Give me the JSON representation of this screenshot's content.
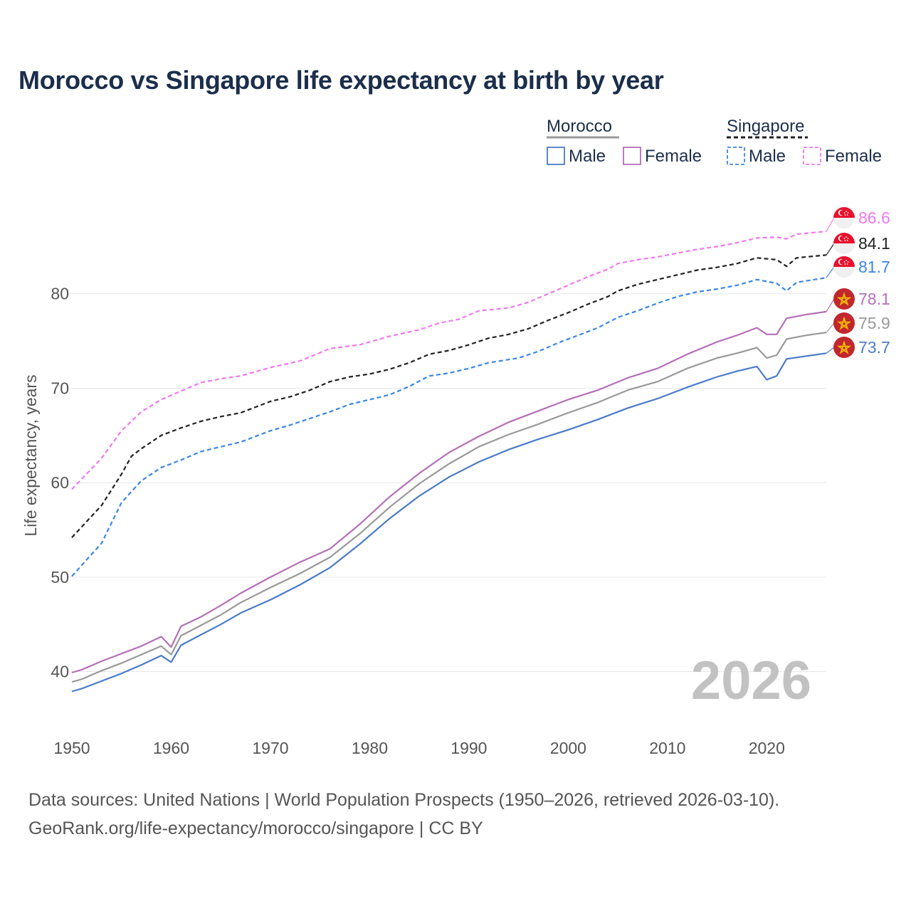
{
  "title": "Morocco vs Singapore life expectancy at birth by year",
  "chart_data": {
    "type": "line",
    "title": "Morocco vs Singapore life expectancy at birth by year",
    "xlabel": "",
    "ylabel": "Life expectancy, years",
    "xlim": [
      1950,
      2026
    ],
    "ylim": [
      35,
      90
    ],
    "x_ticks": [
      1950,
      1960,
      1970,
      1980,
      1990,
      2000,
      2010,
      2020
    ],
    "y_ticks": [
      40,
      50,
      60,
      70,
      80
    ],
    "year_watermark": "2026",
    "legend": {
      "groups": [
        {
          "country": "Morocco",
          "style": "solid",
          "entries": [
            "Male",
            "Female"
          ]
        },
        {
          "country": "Singapore",
          "style": "dashed",
          "entries": [
            "Male",
            "Female"
          ]
        }
      ]
    },
    "series": [
      {
        "name": "Singapore Female",
        "country": "Singapore",
        "sex": "Female",
        "color": "#f078f0",
        "dash": true,
        "end_label": "86.6",
        "points": [
          [
            1950,
            59.3
          ],
          [
            1953,
            62.6
          ],
          [
            1955,
            65.5
          ],
          [
            1957,
            67.5
          ],
          [
            1959,
            68.8
          ],
          [
            1961,
            69.7
          ],
          [
            1963,
            70.6
          ],
          [
            1965,
            71.0
          ],
          [
            1967,
            71.3
          ],
          [
            1970,
            72.2
          ],
          [
            1973,
            72.9
          ],
          [
            1976,
            74.2
          ],
          [
            1979,
            74.6
          ],
          [
            1982,
            75.5
          ],
          [
            1985,
            76.2
          ],
          [
            1987,
            76.9
          ],
          [
            1989,
            77.3
          ],
          [
            1991,
            78.2
          ],
          [
            1994,
            78.5
          ],
          [
            1996,
            79.1
          ],
          [
            1998,
            80.0
          ],
          [
            2000,
            80.9
          ],
          [
            2002,
            81.8
          ],
          [
            2004,
            82.6
          ],
          [
            2005,
            83.2
          ],
          [
            2007,
            83.6
          ],
          [
            2009,
            83.9
          ],
          [
            2011,
            84.3
          ],
          [
            2013,
            84.7
          ],
          [
            2015,
            85.0
          ],
          [
            2017,
            85.4
          ],
          [
            2019,
            85.9
          ],
          [
            2021,
            86.0
          ],
          [
            2022,
            85.8
          ],
          [
            2023,
            86.3
          ],
          [
            2026,
            86.6
          ]
        ]
      },
      {
        "name": "Singapore Total",
        "country": "Singapore",
        "sex": "Total",
        "color": "#222222",
        "dash": true,
        "end_label": "84.1",
        "points": [
          [
            1950,
            54.2
          ],
          [
            1953,
            57.6
          ],
          [
            1955,
            60.9
          ],
          [
            1956,
            62.8
          ],
          [
            1957,
            63.6
          ],
          [
            1959,
            65.0
          ],
          [
            1961,
            65.8
          ],
          [
            1963,
            66.5
          ],
          [
            1965,
            67.0
          ],
          [
            1967,
            67.4
          ],
          [
            1970,
            68.6
          ],
          [
            1972,
            69.1
          ],
          [
            1974,
            69.8
          ],
          [
            1976,
            70.7
          ],
          [
            1978,
            71.2
          ],
          [
            1980,
            71.5
          ],
          [
            1982,
            72.0
          ],
          [
            1984,
            72.7
          ],
          [
            1986,
            73.6
          ],
          [
            1988,
            74.0
          ],
          [
            1990,
            74.6
          ],
          [
            1992,
            75.3
          ],
          [
            1994,
            75.7
          ],
          [
            1996,
            76.3
          ],
          [
            1998,
            77.2
          ],
          [
            2000,
            78.0
          ],
          [
            2002,
            78.9
          ],
          [
            2004,
            79.7
          ],
          [
            2005,
            80.3
          ],
          [
            2007,
            81.0
          ],
          [
            2009,
            81.5
          ],
          [
            2011,
            82.0
          ],
          [
            2013,
            82.5
          ],
          [
            2015,
            82.8
          ],
          [
            2017,
            83.2
          ],
          [
            2019,
            83.8
          ],
          [
            2021,
            83.6
          ],
          [
            2022,
            82.9
          ],
          [
            2023,
            83.8
          ],
          [
            2026,
            84.1
          ]
        ]
      },
      {
        "name": "Singapore Male",
        "country": "Singapore",
        "sex": "Male",
        "color": "#3b86e6",
        "dash": true,
        "end_label": "81.7",
        "points": [
          [
            1950,
            50.1
          ],
          [
            1953,
            53.6
          ],
          [
            1955,
            57.9
          ],
          [
            1957,
            60.2
          ],
          [
            1959,
            61.6
          ],
          [
            1961,
            62.4
          ],
          [
            1963,
            63.3
          ],
          [
            1965,
            63.8
          ],
          [
            1967,
            64.3
          ],
          [
            1970,
            65.5
          ],
          [
            1972,
            66.1
          ],
          [
            1974,
            66.8
          ],
          [
            1976,
            67.5
          ],
          [
            1978,
            68.3
          ],
          [
            1980,
            68.8
          ],
          [
            1982,
            69.3
          ],
          [
            1984,
            70.2
          ],
          [
            1986,
            71.3
          ],
          [
            1988,
            71.6
          ],
          [
            1990,
            72.1
          ],
          [
            1992,
            72.7
          ],
          [
            1995,
            73.2
          ],
          [
            1997,
            73.9
          ],
          [
            1999,
            74.8
          ],
          [
            2001,
            75.6
          ],
          [
            2003,
            76.4
          ],
          [
            2005,
            77.5
          ],
          [
            2007,
            78.2
          ],
          [
            2009,
            79.0
          ],
          [
            2011,
            79.7
          ],
          [
            2013,
            80.2
          ],
          [
            2015,
            80.5
          ],
          [
            2017,
            80.9
          ],
          [
            2019,
            81.5
          ],
          [
            2021,
            81.1
          ],
          [
            2022,
            80.3
          ],
          [
            2023,
            81.2
          ],
          [
            2026,
            81.7
          ]
        ]
      },
      {
        "name": "Morocco Female",
        "country": "Morocco",
        "sex": "Female",
        "color": "#b56fb8",
        "dash": false,
        "end_label": "78.1",
        "points": [
          [
            1950,
            39.9
          ],
          [
            1951,
            40.2
          ],
          [
            1953,
            41.1
          ],
          [
            1955,
            41.9
          ],
          [
            1957,
            42.7
          ],
          [
            1959,
            43.7
          ],
          [
            1960,
            42.6
          ],
          [
            1961,
            44.8
          ],
          [
            1963,
            45.8
          ],
          [
            1965,
            47.0
          ],
          [
            1967,
            48.3
          ],
          [
            1970,
            50.0
          ],
          [
            1973,
            51.6
          ],
          [
            1976,
            53.0
          ],
          [
            1979,
            55.6
          ],
          [
            1982,
            58.5
          ],
          [
            1985,
            61.0
          ],
          [
            1988,
            63.2
          ],
          [
            1991,
            64.9
          ],
          [
            1994,
            66.4
          ],
          [
            1997,
            67.6
          ],
          [
            2000,
            68.8
          ],
          [
            2003,
            69.8
          ],
          [
            2006,
            71.1
          ],
          [
            2009,
            72.1
          ],
          [
            2012,
            73.6
          ],
          [
            2015,
            74.9
          ],
          [
            2017,
            75.6
          ],
          [
            2019,
            76.4
          ],
          [
            2020,
            75.7
          ],
          [
            2021,
            75.7
          ],
          [
            2022,
            77.4
          ],
          [
            2024,
            77.8
          ],
          [
            2026,
            78.1
          ]
        ]
      },
      {
        "name": "Morocco Total",
        "country": "Morocco",
        "sex": "Total",
        "color": "#999999",
        "dash": false,
        "end_label": "75.9",
        "points": [
          [
            1950,
            38.9
          ],
          [
            1951,
            39.2
          ],
          [
            1953,
            40.1
          ],
          [
            1955,
            40.9
          ],
          [
            1957,
            41.8
          ],
          [
            1959,
            42.7
          ],
          [
            1960,
            41.8
          ],
          [
            1961,
            43.8
          ],
          [
            1963,
            44.9
          ],
          [
            1965,
            46.0
          ],
          [
            1967,
            47.3
          ],
          [
            1970,
            48.9
          ],
          [
            1973,
            50.4
          ],
          [
            1976,
            52.1
          ],
          [
            1979,
            54.6
          ],
          [
            1982,
            57.4
          ],
          [
            1985,
            59.9
          ],
          [
            1988,
            62.0
          ],
          [
            1991,
            63.8
          ],
          [
            1994,
            65.1
          ],
          [
            1997,
            66.2
          ],
          [
            2000,
            67.4
          ],
          [
            2003,
            68.5
          ],
          [
            2006,
            69.8
          ],
          [
            2009,
            70.7
          ],
          [
            2012,
            72.1
          ],
          [
            2015,
            73.2
          ],
          [
            2017,
            73.7
          ],
          [
            2019,
            74.3
          ],
          [
            2020,
            73.2
          ],
          [
            2021,
            73.5
          ],
          [
            2022,
            75.2
          ],
          [
            2024,
            75.6
          ],
          [
            2026,
            75.9
          ]
        ]
      },
      {
        "name": "Morocco Male",
        "country": "Morocco",
        "sex": "Male",
        "color": "#4a7bc8",
        "dash": false,
        "end_label": "73.7",
        "points": [
          [
            1950,
            37.9
          ],
          [
            1951,
            38.2
          ],
          [
            1953,
            39.0
          ],
          [
            1955,
            39.8
          ],
          [
            1957,
            40.7
          ],
          [
            1959,
            41.7
          ],
          [
            1960,
            41.0
          ],
          [
            1961,
            42.8
          ],
          [
            1963,
            43.9
          ],
          [
            1965,
            45.0
          ],
          [
            1967,
            46.2
          ],
          [
            1970,
            47.6
          ],
          [
            1973,
            49.2
          ],
          [
            1976,
            51.0
          ],
          [
            1979,
            53.5
          ],
          [
            1982,
            56.2
          ],
          [
            1985,
            58.6
          ],
          [
            1988,
            60.6
          ],
          [
            1991,
            62.2
          ],
          [
            1994,
            63.5
          ],
          [
            1997,
            64.6
          ],
          [
            2000,
            65.6
          ],
          [
            2003,
            66.7
          ],
          [
            2006,
            67.9
          ],
          [
            2009,
            68.9
          ],
          [
            2012,
            70.1
          ],
          [
            2015,
            71.2
          ],
          [
            2017,
            71.8
          ],
          [
            2019,
            72.3
          ],
          [
            2020,
            70.9
          ],
          [
            2021,
            71.3
          ],
          [
            2022,
            73.1
          ],
          [
            2024,
            73.4
          ],
          [
            2026,
            73.7
          ]
        ]
      }
    ]
  },
  "footer": {
    "line1": "Data sources: United Nations | World Population Prospects (1950–2026, retrieved 2026-03-10).",
    "line2": "GeoRank.org/life-expectancy/morocco/singapore | CC BY"
  },
  "colors": {
    "title": "#1b2e4b",
    "grid": "#e6e6e6",
    "tick": "#555555",
    "watermark": "#c2c2c2",
    "singapore_flag": "#e8112d",
    "morocco_flag": "#c1272d",
    "morocco_star": "#f5c400"
  }
}
